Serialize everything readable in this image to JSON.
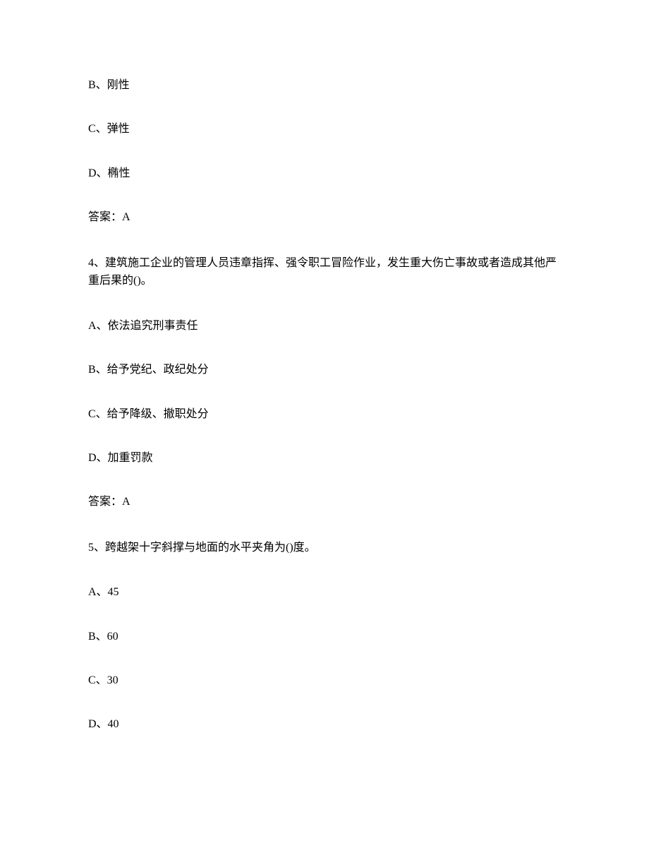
{
  "q3": {
    "optionB": "B、刚性",
    "optionC": "C、弹性",
    "optionD": "D、椭性",
    "answer": "答案：A"
  },
  "q4": {
    "question": "4、建筑施工企业的管理人员违章指挥、强令职工冒险作业，发生重大伤亡事故或者造成其他严重后果的()。",
    "optionA": "A、依法追究刑事责任",
    "optionB": "B、给予党纪、政纪处分",
    "optionC": "C、给予降级、撤职处分",
    "optionD": "D、加重罚款",
    "answer": "答案：A"
  },
  "q5": {
    "question": "5、跨越架十字斜撑与地面的水平夹角为()度。",
    "optionA": "A、45",
    "optionB": "B、60",
    "optionC": "C、30",
    "optionD": "D、40"
  }
}
